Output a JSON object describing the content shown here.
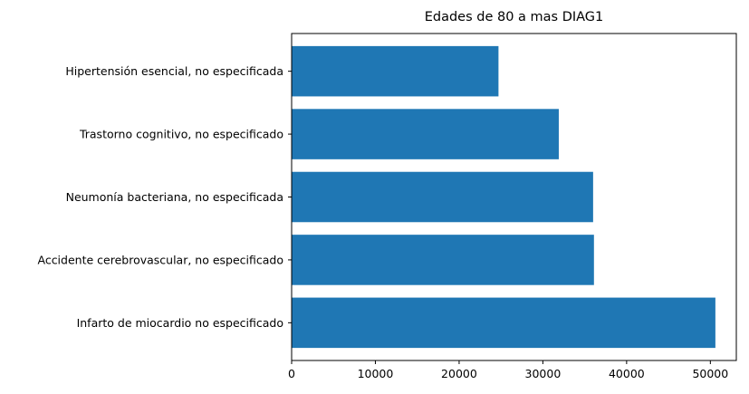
{
  "chart_data": {
    "type": "bar",
    "orientation": "horizontal",
    "title": "Edades de 80 a mas DIAG1",
    "xlabel": "",
    "ylabel": "",
    "categories": [
      "Infarto de miocardio no especificado",
      "Accidente cerebrovascular, no especificado",
      "Neumonía bacteriana, no especificada",
      "Trastorno cognitivo, no especificado",
      "Hipertensión esencial, no especificada"
    ],
    "values": [
      50600,
      36100,
      36000,
      31900,
      24700
    ],
    "xlim": [
      0,
      53100
    ],
    "xticks": [
      0,
      10000,
      20000,
      30000,
      40000,
      50000
    ],
    "xtick_labels": [
      "0",
      "10000",
      "20000",
      "30000",
      "40000",
      "50000"
    ],
    "bar_color": "#1f77b4",
    "grid": false,
    "legend": "none"
  }
}
